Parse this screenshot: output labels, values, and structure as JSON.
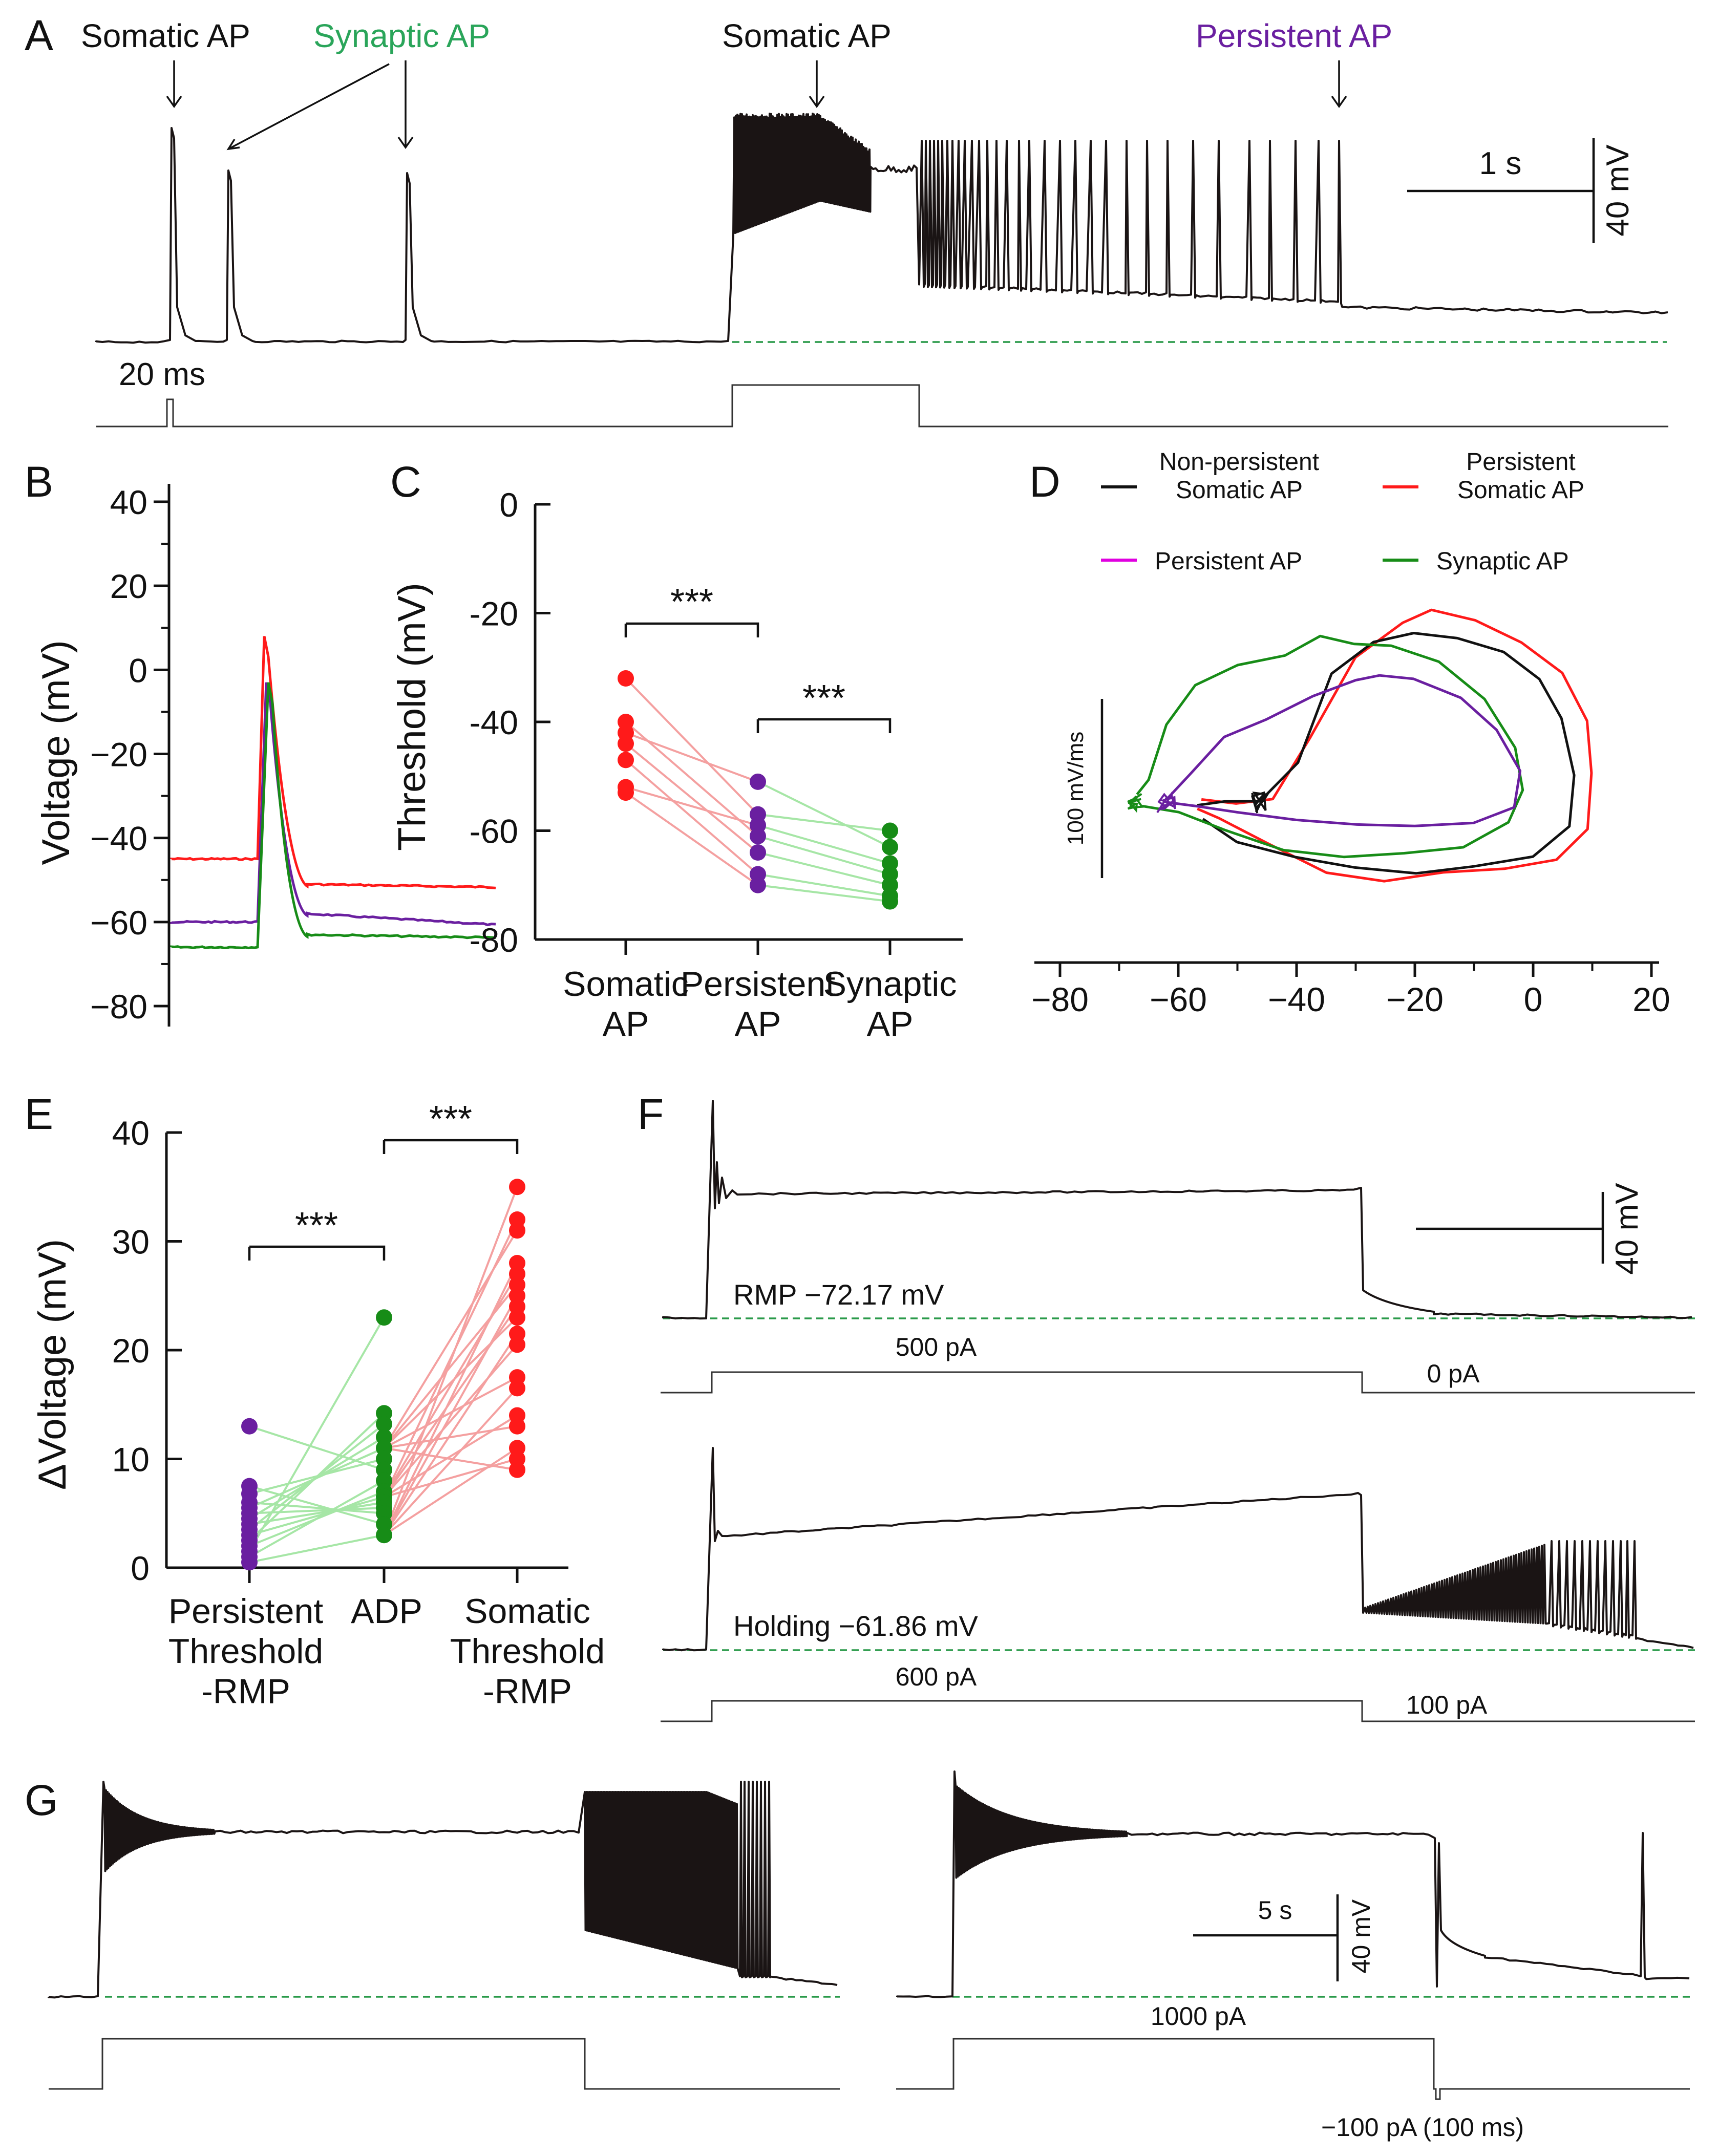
{
  "panel_letters": [
    "A",
    "B",
    "C",
    "D",
    "E",
    "F",
    "G"
  ],
  "colors": {
    "somatic": "#ff1a1a",
    "persistent": "#6a1fa0",
    "synaptic": "#178c17",
    "synaptic_label": "#2aa55a",
    "persistent_label": "#6a1fa0",
    "magenta": "#e000e0",
    "trace": "#1a1414",
    "baseline": "#2a9a4a"
  },
  "panel_a": {
    "labels": {
      "somatic_ap_1": "Somatic AP",
      "synaptic_ap": "Synaptic AP",
      "somatic_ap_2": "Somatic AP",
      "persistent_ap": "Persistent AP"
    },
    "pulse_label": "20 ms",
    "scale_time": "1 s",
    "scale_voltage": "40 mV"
  },
  "chart_data": [
    {
      "id": "B",
      "type": "line",
      "ylabel": "Voltage (mV)",
      "ylim": [
        -80,
        40
      ],
      "yticks": [
        40,
        20,
        0,
        -20,
        -40,
        -60,
        -80
      ],
      "ytick_labels": [
        "40",
        "20",
        "0",
        "−20",
        "−40",
        "−60",
        "−80"
      ],
      "series": [
        {
          "name": "Somatic AP",
          "color": "#ff1a1a",
          "baseline": -45,
          "peak": 8,
          "post": -51
        },
        {
          "name": "Persistent AP",
          "color": "#6a1fa0",
          "baseline": -60,
          "peak": -3,
          "post": -58
        },
        {
          "name": "Synaptic AP",
          "color": "#178c17",
          "baseline": -66,
          "peak": -3,
          "post": -63
        }
      ]
    },
    {
      "id": "C",
      "type": "scatter",
      "ylabel": "Threshold (mV)",
      "ylim": [
        -80,
        0
      ],
      "yticks": [
        0,
        -20,
        -40,
        -60,
        -80
      ],
      "ytick_labels": [
        "0",
        "-20",
        "-40",
        "-60",
        "-80"
      ],
      "categories": [
        "Somatic\nAP",
        "Persistent\nAP",
        "Synaptic\nAP"
      ],
      "significance": [
        "***",
        "***"
      ],
      "series": [
        {
          "name": "Somatic AP",
          "color": "#ff1a1a",
          "values": [
            -32,
            -40,
            -42,
            -44,
            -47,
            -52,
            -53
          ]
        },
        {
          "name": "Persistent AP",
          "color": "#6a1fa0",
          "values": [
            -51,
            -57,
            -59,
            -61,
            -64,
            -68,
            -70
          ]
        },
        {
          "name": "Synaptic AP",
          "color": "#178c17",
          "values": [
            -60,
            -63,
            -66,
            -68,
            -70,
            -72,
            -73
          ]
        }
      ],
      "pairs": [
        [
          -32,
          -57
        ],
        [
          -40,
          -61
        ],
        [
          -42,
          -51
        ],
        [
          -44,
          -64
        ],
        [
          -47,
          -68
        ],
        [
          -52,
          -59
        ],
        [
          -53,
          -70
        ],
        [
          -51,
          -63
        ],
        [
          -57,
          -60
        ],
        [
          -59,
          -66
        ],
        [
          -61,
          -68
        ],
        [
          -64,
          -70
        ],
        [
          -68,
          -72
        ],
        [
          -70,
          -73
        ]
      ]
    },
    {
      "id": "D",
      "type": "line",
      "xlim": [
        -80,
        20
      ],
      "xticks": [
        -80,
        -60,
        -40,
        -20,
        0,
        20
      ],
      "xtick_labels": [
        "−80",
        "−60",
        "−40",
        "−20",
        "0",
        "20"
      ],
      "scale_label": "100 mV/ms",
      "legend": [
        "Non-persistent\nSomatic AP",
        "Persistent\nSomatic AP",
        "Persistent AP",
        "Synaptic AP"
      ],
      "legend_colors": [
        "#111111",
        "#ff1a1a",
        "#e000e0",
        "#178c17"
      ],
      "series": [
        {
          "name": "Non-persistent Somatic AP",
          "color": "#111111",
          "start": -57,
          "peak_v": -17,
          "max_v": 7
        },
        {
          "name": "Persistent Somatic AP",
          "color": "#ff1a1a",
          "start": -56,
          "peak_v": -17,
          "max_v": 10
        },
        {
          "name": "Persistent AP",
          "color": "#6a1fa0",
          "start": -62,
          "peak_v": -27,
          "max_v": -2
        },
        {
          "name": "Synaptic AP",
          "color": "#178c17",
          "start": -67,
          "peak_v": -33,
          "max_v": -2
        }
      ]
    },
    {
      "id": "E",
      "type": "scatter",
      "ylabel": "ΔVoltage (mV)",
      "ylim": [
        0,
        40
      ],
      "yticks": [
        40,
        30,
        20,
        10,
        0
      ],
      "ytick_labels": [
        "40",
        "30",
        "20",
        "10",
        "0"
      ],
      "categories": [
        "Persistent\nThreshold\n-RMP",
        "ADP",
        "Somatic\nThreshold\n-RMP"
      ],
      "significance": [
        "***",
        "***"
      ],
      "series": [
        {
          "name": "Persistent Threshold -RMP",
          "color": "#6a1fa0",
          "values": [
            13,
            7.5,
            6.8,
            6,
            5.5,
            5,
            4.5,
            4,
            3.5,
            3,
            2.5,
            2,
            1.5,
            1,
            0.5
          ]
        },
        {
          "name": "ADP",
          "color": "#178c17",
          "values": [
            23,
            14.2,
            13.2,
            12,
            11,
            10,
            9,
            8,
            7,
            6.5,
            6,
            5.5,
            5,
            4,
            3
          ]
        },
        {
          "name": "Somatic Threshold -RMP",
          "color": "#ff1a1a",
          "values": [
            35,
            32,
            31,
            28,
            27,
            26,
            25,
            24,
            23,
            21.5,
            20.5,
            17.5,
            16.5,
            14,
            13,
            11,
            10,
            9
          ]
        }
      ]
    }
  ],
  "panel_f": {
    "top": {
      "rmp_label": "RMP −72.17 mV",
      "step_label": "500 pA",
      "after_label": "0 pA"
    },
    "bottom": {
      "rmp_label": "Holding −61.86 mV",
      "step_label": "600 pA",
      "after_label": "100 pA"
    },
    "scale_voltage": "40 mV"
  },
  "panel_g": {
    "step_label": "1000 pA",
    "pulse_label": "−100 pA (100 ms)",
    "scale_time": "5 s",
    "scale_voltage": "40 mV"
  }
}
